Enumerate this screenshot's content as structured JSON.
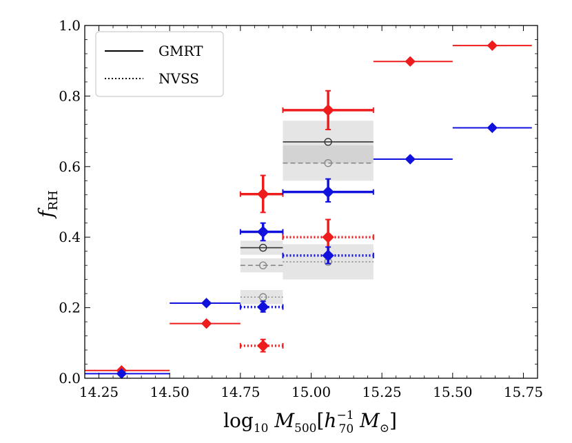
{
  "chart_data": {
    "type": "scatter",
    "title": "",
    "xlabel": "log10 M500[h70^-1 M⊙]",
    "ylabel": "fRH",
    "xlim": [
      14.2,
      15.8
    ],
    "ylim": [
      0.0,
      1.0
    ],
    "xticks": [
      "14.25",
      "14.50",
      "14.75",
      "15.00",
      "15.25",
      "15.50",
      "15.75"
    ],
    "yticks": [
      "0.0",
      "0.2",
      "0.4",
      "0.6",
      "0.8",
      "1.0"
    ],
    "grid": false,
    "legend": {
      "position": "top-left",
      "entries": [
        {
          "label": "GMRT",
          "style": "solid"
        },
        {
          "label": "NVSS",
          "style": "dotted"
        }
      ]
    },
    "colors": {
      "red": "#ee1c1c",
      "blue": "#1111dd",
      "black": "#333333",
      "gray": "#888888",
      "band_fill": "#aaaaaa"
    },
    "series": [
      {
        "color": "red",
        "style": "solid",
        "thin": true,
        "points": [
          {
            "x": 14.33,
            "y": 0.022,
            "xlo": 14.2,
            "xhi": 14.5
          },
          {
            "x": 14.63,
            "y": 0.155,
            "xlo": 14.5,
            "xhi": 14.75
          },
          {
            "x": 15.35,
            "y": 0.898,
            "xlo": 15.22,
            "xhi": 15.5
          },
          {
            "x": 15.64,
            "y": 0.943,
            "xlo": 15.5,
            "xhi": 15.78
          }
        ]
      },
      {
        "color": "blue",
        "style": "solid",
        "thin": true,
        "points": [
          {
            "x": 14.33,
            "y": 0.013,
            "xlo": 14.2,
            "xhi": 14.5
          },
          {
            "x": 14.63,
            "y": 0.213,
            "xlo": 14.5,
            "xhi": 14.75
          },
          {
            "x": 15.35,
            "y": 0.621,
            "xlo": 15.22,
            "xhi": 15.5
          },
          {
            "x": 15.64,
            "y": 0.71,
            "xlo": 15.5,
            "xhi": 15.78
          }
        ]
      },
      {
        "color": "red",
        "style": "solid",
        "thin": false,
        "points": [
          {
            "x": 14.83,
            "y": 0.522,
            "xlo": 14.75,
            "xhi": 14.9,
            "ylo": 0.47,
            "yhi": 0.575
          },
          {
            "x": 15.06,
            "y": 0.76,
            "xlo": 14.9,
            "xhi": 15.22,
            "ylo": 0.705,
            "yhi": 0.815
          }
        ]
      },
      {
        "color": "blue",
        "style": "solid",
        "thin": false,
        "points": [
          {
            "x": 14.83,
            "y": 0.415,
            "xlo": 14.75,
            "xhi": 14.9,
            "ylo": 0.39,
            "yhi": 0.44
          },
          {
            "x": 15.06,
            "y": 0.528,
            "xlo": 14.9,
            "xhi": 15.22,
            "ylo": 0.5,
            "yhi": 0.565
          }
        ]
      },
      {
        "color": "red",
        "style": "dotted",
        "thin": false,
        "points": [
          {
            "x": 14.83,
            "y": 0.092,
            "xlo": 14.75,
            "xhi": 14.9,
            "ylo": 0.075,
            "yhi": 0.11
          },
          {
            "x": 15.06,
            "y": 0.4,
            "xlo": 14.9,
            "xhi": 15.22,
            "ylo": 0.35,
            "yhi": 0.45
          }
        ]
      },
      {
        "color": "blue",
        "style": "dotted",
        "thin": false,
        "points": [
          {
            "x": 14.83,
            "y": 0.202,
            "xlo": 14.75,
            "xhi": 14.9,
            "ylo": 0.188,
            "yhi": 0.218
          },
          {
            "x": 15.06,
            "y": 0.348,
            "xlo": 14.9,
            "xhi": 15.22,
            "ylo": 0.325,
            "yhi": 0.372
          }
        ]
      }
    ],
    "reference_bands": [
      {
        "color": "black",
        "style": "solid",
        "x": 14.83,
        "xlo": 14.75,
        "xhi": 14.9,
        "y": 0.37,
        "ylo": 0.35,
        "yhi": 0.39
      },
      {
        "color": "black",
        "style": "solid",
        "x": 15.06,
        "xlo": 14.9,
        "xhi": 15.22,
        "y": 0.67,
        "ylo": 0.61,
        "yhi": 0.73
      },
      {
        "color": "gray",
        "style": "dashed",
        "x": 14.83,
        "xlo": 14.75,
        "xhi": 14.9,
        "y": 0.32,
        "ylo": 0.3,
        "yhi": 0.34
      },
      {
        "color": "gray",
        "style": "dashed",
        "x": 15.06,
        "xlo": 14.9,
        "xhi": 15.22,
        "y": 0.61,
        "ylo": 0.56,
        "yhi": 0.66
      },
      {
        "color": "gray",
        "style": "dotted",
        "x": 14.83,
        "xlo": 14.75,
        "xhi": 14.9,
        "y": 0.23,
        "ylo": 0.21,
        "yhi": 0.25
      },
      {
        "color": "gray",
        "style": "dotted",
        "x": 15.06,
        "xlo": 14.9,
        "xhi": 15.22,
        "y": 0.33,
        "ylo": 0.28,
        "yhi": 0.38
      }
    ]
  }
}
